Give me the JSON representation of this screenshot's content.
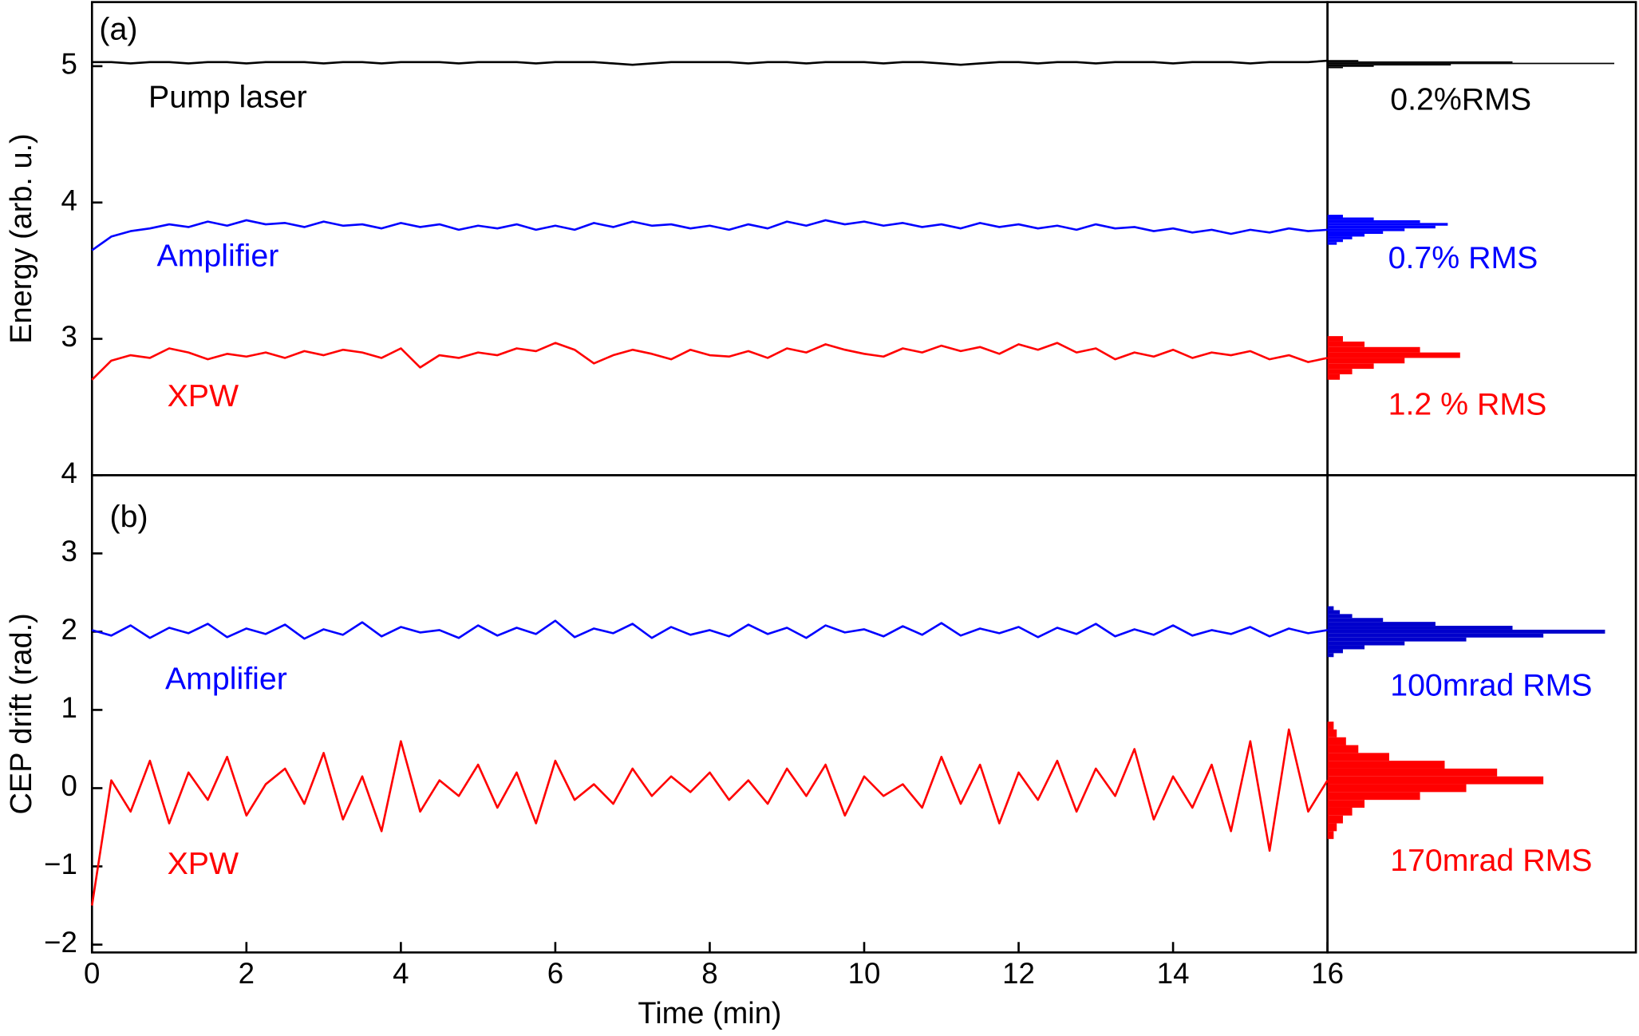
{
  "chart_data": [
    {
      "type": "line",
      "ylabel": "Energy (arb. u.)",
      "xlim": [
        0,
        16
      ],
      "ylim": [
        2,
        5.47
      ],
      "yticks": [
        3,
        4,
        5
      ],
      "x": [
        0,
        0.25,
        0.5,
        0.75,
        1,
        1.25,
        1.5,
        1.75,
        2,
        2.25,
        2.5,
        2.75,
        3,
        3.25,
        3.5,
        3.75,
        4,
        4.25,
        4.5,
        4.75,
        5,
        5.25,
        5.5,
        5.75,
        6,
        6.25,
        6.5,
        6.75,
        7,
        7.25,
        7.5,
        7.75,
        8,
        8.25,
        8.5,
        8.75,
        9,
        9.25,
        9.5,
        9.75,
        10,
        10.25,
        10.5,
        10.75,
        11,
        11.25,
        11.5,
        11.75,
        12,
        12.25,
        12.5,
        12.75,
        13,
        13.25,
        13.5,
        13.75,
        14,
        14.25,
        14.5,
        14.75,
        15,
        15.25,
        15.5,
        15.75,
        16
      ],
      "series": [
        {
          "name": "Pump laser",
          "color": "#000000",
          "values": [
            5.03,
            5.03,
            5.02,
            5.03,
            5.03,
            5.02,
            5.03,
            5.03,
            5.02,
            5.03,
            5.03,
            5.03,
            5.02,
            5.03,
            5.03,
            5.02,
            5.03,
            5.03,
            5.03,
            5.02,
            5.03,
            5.03,
            5.03,
            5.02,
            5.03,
            5.03,
            5.03,
            5.02,
            5.01,
            5.02,
            5.03,
            5.03,
            5.03,
            5.03,
            5.02,
            5.03,
            5.03,
            5.02,
            5.03,
            5.03,
            5.03,
            5.02,
            5.03,
            5.03,
            5.02,
            5.01,
            5.02,
            5.03,
            5.03,
            5.02,
            5.03,
            5.03,
            5.02,
            5.03,
            5.03,
            5.03,
            5.02,
            5.03,
            5.03,
            5.03,
            5.02,
            5.03,
            5.03,
            5.03,
            5.04
          ]
        },
        {
          "name": "Amplifier",
          "color": "#0000ff",
          "values": [
            3.65,
            3.75,
            3.79,
            3.81,
            3.84,
            3.82,
            3.86,
            3.83,
            3.87,
            3.84,
            3.85,
            3.82,
            3.86,
            3.83,
            3.84,
            3.81,
            3.85,
            3.82,
            3.84,
            3.8,
            3.83,
            3.81,
            3.84,
            3.8,
            3.83,
            3.8,
            3.85,
            3.82,
            3.86,
            3.83,
            3.84,
            3.81,
            3.83,
            3.8,
            3.84,
            3.81,
            3.86,
            3.83,
            3.87,
            3.84,
            3.86,
            3.83,
            3.85,
            3.82,
            3.84,
            3.81,
            3.85,
            3.82,
            3.84,
            3.81,
            3.83,
            3.8,
            3.84,
            3.81,
            3.82,
            3.79,
            3.81,
            3.78,
            3.8,
            3.77,
            3.8,
            3.78,
            3.81,
            3.79,
            3.8
          ]
        },
        {
          "name": "XPW",
          "color": "#ff0000",
          "values": [
            2.7,
            2.84,
            2.88,
            2.86,
            2.93,
            2.9,
            2.85,
            2.89,
            2.87,
            2.9,
            2.86,
            2.91,
            2.88,
            2.92,
            2.9,
            2.86,
            2.93,
            2.79,
            2.88,
            2.86,
            2.9,
            2.88,
            2.93,
            2.91,
            2.97,
            2.92,
            2.82,
            2.88,
            2.92,
            2.89,
            2.85,
            2.92,
            2.88,
            2.87,
            2.91,
            2.86,
            2.93,
            2.9,
            2.96,
            2.92,
            2.89,
            2.87,
            2.93,
            2.9,
            2.95,
            2.91,
            2.94,
            2.89,
            2.96,
            2.92,
            2.97,
            2.9,
            2.93,
            2.85,
            2.9,
            2.87,
            2.92,
            2.86,
            2.9,
            2.88,
            2.91,
            2.85,
            2.88,
            2.83,
            2.86
          ]
        }
      ],
      "hist_xlim": [
        0,
        100
      ],
      "histograms": [
        {
          "color": "#000000",
          "bins": [
            4.985,
            4.995,
            5.005,
            5.015,
            5.025,
            5.035,
            5.045
          ],
          "counts": [
            5,
            15,
            40,
            93,
            60,
            10
          ]
        },
        {
          "color": "#0000ff",
          "bins": [
            3.69,
            3.71,
            3.73,
            3.75,
            3.77,
            3.79,
            3.81,
            3.83,
            3.85,
            3.87,
            3.89,
            3.91
          ],
          "counts": [
            3,
            5,
            8,
            12,
            18,
            25,
            35,
            39,
            30,
            15,
            5
          ]
        },
        {
          "color": "#ff0000",
          "bins": [
            2.7,
            2.74,
            2.78,
            2.82,
            2.86,
            2.9,
            2.94,
            2.98,
            3.02
          ],
          "counts": [
            4,
            8,
            15,
            25,
            43,
            30,
            12,
            5
          ]
        }
      ],
      "annotations": [
        {
          "text": "(a)",
          "color": "#000000"
        },
        {
          "text": "Pump laser",
          "color": "#000000"
        },
        {
          "text": "Amplifier",
          "color": "#0000ff"
        },
        {
          "text": "XPW",
          "color": "#ff0000"
        },
        {
          "text": "0.2%RMS",
          "color": "#000000"
        },
        {
          "text": "0.7% RMS",
          "color": "#0000ff"
        },
        {
          "text": "1.2 % RMS",
          "color": "#ff0000"
        }
      ]
    },
    {
      "type": "line",
      "ylabel": "CEP drift (rad.)",
      "xlabel": "Time (min)",
      "xlim": [
        0,
        16
      ],
      "xticks": [
        0,
        2,
        4,
        6,
        8,
        10,
        12,
        14,
        16
      ],
      "ylim": [
        -2.1,
        4
      ],
      "yticks": [
        {
          "value": -2,
          "label": "−2"
        },
        {
          "value": -1,
          "label": "−1"
        },
        0,
        1,
        2,
        3,
        4
      ],
      "x": [
        0,
        0.25,
        0.5,
        0.75,
        1,
        1.25,
        1.5,
        1.75,
        2,
        2.25,
        2.5,
        2.75,
        3,
        3.25,
        3.5,
        3.75,
        4,
        4.25,
        4.5,
        4.75,
        5,
        5.25,
        5.5,
        5.75,
        6,
        6.25,
        6.5,
        6.75,
        7,
        7.25,
        7.5,
        7.75,
        8,
        8.25,
        8.5,
        8.75,
        9,
        9.25,
        9.5,
        9.75,
        10,
        10.25,
        10.5,
        10.75,
        11,
        11.25,
        11.5,
        11.75,
        12,
        12.25,
        12.5,
        12.75,
        13,
        13.25,
        13.5,
        13.75,
        14,
        14.25,
        14.5,
        14.75,
        15,
        15.25,
        15.5,
        15.75,
        16
      ],
      "series": [
        {
          "name": "Amplifier",
          "color": "#0000ff",
          "values": [
            2.02,
            1.95,
            2.08,
            1.92,
            2.05,
            1.98,
            2.1,
            1.93,
            2.04,
            1.97,
            2.09,
            1.91,
            2.03,
            1.96,
            2.12,
            1.94,
            2.06,
            1.99,
            2.02,
            1.92,
            2.08,
            1.95,
            2.05,
            1.97,
            2.14,
            1.93,
            2.04,
            1.98,
            2.1,
            1.92,
            2.06,
            1.96,
            2.02,
            1.94,
            2.09,
            1.97,
            2.05,
            1.92,
            2.08,
            1.99,
            2.03,
            1.94,
            2.07,
            1.96,
            2.11,
            1.95,
            2.04,
            1.98,
            2.06,
            1.93,
            2.05,
            1.97,
            2.1,
            1.94,
            2.03,
            1.96,
            2.08,
            1.95,
            2.02,
            1.97,
            2.06,
            1.94,
            2.04,
            1.98,
            2.02
          ]
        },
        {
          "name": "XPW",
          "color": "#ff0000",
          "values": [
            -1.5,
            0.1,
            -0.3,
            0.35,
            -0.45,
            0.2,
            -0.15,
            0.4,
            -0.35,
            0.05,
            0.25,
            -0.2,
            0.45,
            -0.4,
            0.15,
            -0.55,
            0.6,
            -0.3,
            0.1,
            -0.1,
            0.3,
            -0.25,
            0.2,
            -0.45,
            0.35,
            -0.15,
            0.05,
            -0.2,
            0.25,
            -0.1,
            0.15,
            -0.05,
            0.2,
            -0.15,
            0.1,
            -0.2,
            0.25,
            -0.1,
            0.3,
            -0.35,
            0.15,
            -0.1,
            0.05,
            -0.25,
            0.4,
            -0.2,
            0.3,
            -0.45,
            0.2,
            -0.15,
            0.35,
            -0.3,
            0.25,
            -0.1,
            0.5,
            -0.4,
            0.15,
            -0.25,
            0.3,
            -0.55,
            0.6,
            -0.8,
            0.75,
            -0.3,
            0.1
          ]
        }
      ],
      "hist_xlim": [
        0,
        100
      ],
      "histograms": [
        {
          "color": "#0000cc",
          "bins": [
            1.675,
            1.725,
            1.775,
            1.825,
            1.875,
            1.925,
            1.975,
            2.025,
            2.075,
            2.125,
            2.175,
            2.225,
            2.275,
            2.325
          ],
          "counts": [
            2,
            5,
            12,
            25,
            45,
            70,
            90,
            60,
            35,
            18,
            8,
            4,
            2
          ]
        },
        {
          "color": "#ff0000",
          "bins": [
            -0.65,
            -0.55,
            -0.45,
            -0.35,
            -0.25,
            -0.15,
            -0.05,
            0.05,
            0.15,
            0.25,
            0.35,
            0.45,
            0.55,
            0.65,
            0.75,
            0.85
          ],
          "counts": [
            2,
            3,
            5,
            8,
            12,
            30,
            45,
            70,
            55,
            38,
            20,
            10,
            6,
            3,
            2
          ]
        }
      ],
      "annotations": [
        {
          "text": "(b)",
          "color": "#000000"
        },
        {
          "text": "Amplifier",
          "color": "#0000ff"
        },
        {
          "text": "XPW",
          "color": "#ff0000"
        },
        {
          "text": "100mrad RMS",
          "color": "#0000ff"
        },
        {
          "text": "170mrad RMS",
          "color": "#ff0000"
        }
      ]
    }
  ]
}
